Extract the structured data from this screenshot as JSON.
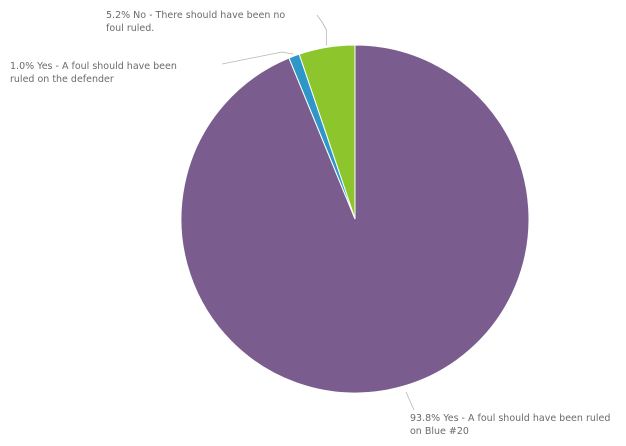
{
  "chart_data": {
    "type": "pie",
    "slices": [
      {
        "label": "Yes - A foul should have been ruled on Blue #20",
        "value": 93.8,
        "display": "93.8% Yes - A foul should have been ruled on Blue #20",
        "color": "#7a5d8e"
      },
      {
        "label": "Yes - A foul should have been ruled on the defender",
        "value": 1.0,
        "display": "1.0% Yes - A foul should have been ruled on the defender",
        "color": "#2e97c8"
      },
      {
        "label": "No - There should have been no foul ruled.",
        "value": 5.2,
        "display": "5.2% No - There should have been no foul ruled.",
        "color": "#8cc62c"
      }
    ],
    "start": "12 o'clock",
    "direction": "counter-clockwise from top: No, then 1.0% Yes, then 93.8% Yes"
  }
}
